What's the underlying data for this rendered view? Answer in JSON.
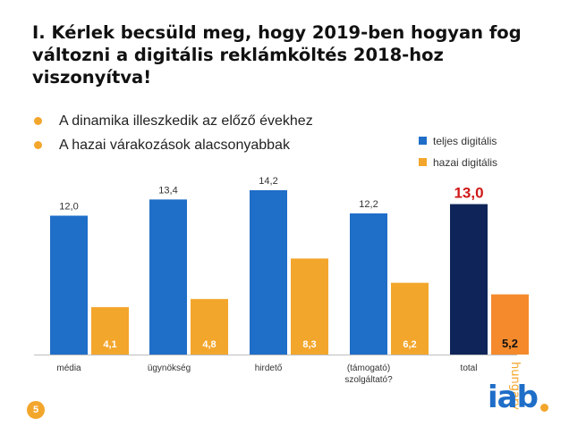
{
  "title": "I. Kérlek becsüld meg, hogy 2019-ben hogyan fog változni a digitális reklámköltés 2018-hoz viszonyítva!",
  "bullets": [
    "A dinamika illeszkedik az előző évekhez",
    "A hazai várakozások alacsonyabbak"
  ],
  "colors": {
    "blue": "#1f6ec8",
    "orange": "#f3a62c",
    "navy": "#0f2559",
    "total_orange": "#f48a2c",
    "total_label_red": "#d01818"
  },
  "chart_data": {
    "type": "bar",
    "categories": [
      "média",
      "ügynökség",
      "hirdető",
      "(támogató) szolgáltató?",
      "total"
    ],
    "series": [
      {
        "name": "teljes digitális",
        "values": [
          12.0,
          13.4,
          14.2,
          12.2,
          13.0
        ],
        "labels": [
          "12,0",
          "13,4",
          "14,2",
          "12,2",
          "13,0"
        ]
      },
      {
        "name": "hazai digitális",
        "values": [
          4.1,
          4.8,
          8.3,
          6.2,
          5.2
        ],
        "labels": [
          "4,1",
          "4,8",
          "8,3",
          "6,2",
          "5,2"
        ]
      }
    ],
    "ylim": [
      0,
      14.2
    ],
    "legend": "top-right",
    "grid": false
  },
  "logo": {
    "text": "iab",
    "tagline": "hungary"
  },
  "page_number": "5"
}
